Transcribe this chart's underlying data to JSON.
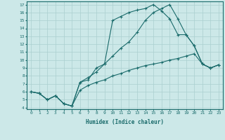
{
  "xlabel": "Humidex (Indice chaleur)",
  "bg_color": "#cce8e8",
  "line_color": "#1a6b6b",
  "grid_color": "#aacfcf",
  "xlim": [
    -0.5,
    23.5
  ],
  "ylim": [
    3.8,
    17.4
  ],
  "xticks": [
    0,
    1,
    2,
    3,
    4,
    5,
    6,
    7,
    8,
    9,
    10,
    11,
    12,
    13,
    14,
    15,
    16,
    17,
    18,
    19,
    20,
    21,
    22,
    23
  ],
  "yticks": [
    4,
    5,
    6,
    7,
    8,
    9,
    10,
    11,
    12,
    13,
    14,
    15,
    16,
    17
  ],
  "line1_x": [
    0,
    1,
    2,
    3,
    4,
    5,
    6,
    7,
    8,
    9,
    10,
    11,
    12,
    13,
    14,
    15,
    16,
    17,
    18,
    19,
    20,
    21,
    22,
    23
  ],
  "line1_y": [
    6.0,
    5.8,
    5.0,
    5.5,
    4.5,
    4.2,
    6.2,
    6.8,
    7.2,
    7.5,
    8.0,
    8.3,
    8.7,
    9.0,
    9.3,
    9.5,
    9.7,
    10.0,
    10.2,
    10.5,
    10.8,
    9.5,
    9.0,
    9.4
  ],
  "line2_x": [
    0,
    1,
    2,
    3,
    4,
    5,
    6,
    7,
    8,
    9,
    10,
    11,
    12,
    13,
    14,
    15,
    16,
    17,
    18,
    19,
    20,
    21,
    22,
    23
  ],
  "line2_y": [
    6.0,
    5.8,
    5.0,
    5.5,
    4.5,
    4.2,
    7.2,
    7.5,
    9.0,
    9.5,
    15.0,
    15.5,
    16.0,
    16.3,
    16.5,
    17.0,
    16.2,
    15.2,
    13.2,
    13.2,
    11.8,
    9.5,
    9.0,
    9.4
  ],
  "line3_x": [
    0,
    1,
    2,
    3,
    4,
    5,
    6,
    7,
    8,
    9,
    10,
    11,
    12,
    13,
    14,
    15,
    16,
    17,
    18,
    19,
    20,
    21,
    22,
    23
  ],
  "line3_y": [
    6.0,
    5.8,
    5.0,
    5.5,
    4.5,
    4.2,
    7.2,
    7.8,
    8.5,
    9.5,
    10.5,
    11.5,
    12.3,
    13.5,
    15.0,
    16.0,
    16.5,
    17.0,
    15.2,
    13.2,
    11.8,
    9.5,
    9.0,
    9.4
  ]
}
